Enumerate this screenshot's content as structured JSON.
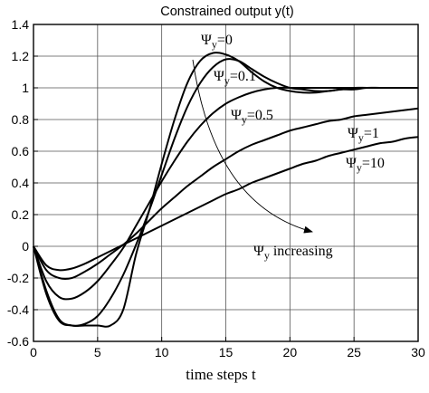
{
  "chart_data": {
    "type": "line",
    "title": "Constrained output y(t)",
    "xlabel": "time steps t",
    "ylabel": "",
    "xlim": [
      0,
      30
    ],
    "ylim": [
      -0.6,
      1.4
    ],
    "grid": true,
    "xticks": [
      0,
      5,
      10,
      15,
      20,
      25,
      30
    ],
    "yticks": [
      -0.6,
      -0.4,
      -0.2,
      0,
      0.2,
      0.4,
      0.6,
      0.8,
      1,
      1.2,
      1.4
    ],
    "ytick_labels": [
      "-0.6",
      "-0.4",
      "-0.2",
      "0",
      "0.2",
      "0.4",
      "0.6",
      "0.8",
      "1",
      "1.2",
      "1.4"
    ],
    "series": [
      {
        "label_main": "Ψ",
        "label_sub": "y",
        "label_rest": "=0",
        "x": [
          0,
          1,
          2,
          3,
          4,
          5,
          6,
          7,
          8,
          9,
          10,
          11,
          12,
          13,
          14,
          15,
          16,
          17,
          18,
          19,
          20,
          21,
          22,
          23,
          24,
          25,
          26,
          27,
          28,
          29,
          30
        ],
        "y": [
          0,
          -0.3,
          -0.47,
          -0.5,
          -0.5,
          -0.5,
          -0.5,
          -0.4,
          -0.05,
          0.22,
          0.52,
          0.8,
          1.03,
          1.17,
          1.22,
          1.21,
          1.17,
          1.1,
          1.04,
          1.0,
          0.98,
          0.97,
          0.97,
          0.98,
          0.99,
          1.0,
          1.0,
          1.0,
          1.0,
          1.0,
          1.0
        ]
      },
      {
        "label_main": "Ψ",
        "label_sub": "y",
        "label_rest": "=0.1",
        "x": [
          0,
          1,
          2,
          3,
          4,
          5,
          6,
          7,
          8,
          9,
          10,
          11,
          12,
          13,
          14,
          15,
          16,
          17,
          18,
          19,
          20,
          21,
          22,
          23,
          24,
          25,
          26,
          27,
          28,
          29,
          30
        ],
        "y": [
          0,
          -0.28,
          -0.46,
          -0.5,
          -0.49,
          -0.44,
          -0.33,
          -0.18,
          0.01,
          0.22,
          0.45,
          0.68,
          0.88,
          1.03,
          1.13,
          1.18,
          1.17,
          1.12,
          1.07,
          1.03,
          1.0,
          0.99,
          0.98,
          0.98,
          0.99,
          0.99,
          1.0,
          1.0,
          1.0,
          1.0,
          1.0
        ]
      },
      {
        "label_main": "Ψ",
        "label_sub": "y",
        "label_rest": "=0.5",
        "x": [
          0,
          1,
          2,
          3,
          4,
          5,
          6,
          7,
          8,
          9,
          10,
          11,
          12,
          13,
          14,
          15,
          16,
          17,
          18,
          19,
          20,
          21,
          22,
          23,
          24,
          25,
          26,
          27,
          28,
          29,
          30
        ],
        "y": [
          0,
          -0.22,
          -0.32,
          -0.33,
          -0.29,
          -0.22,
          -0.12,
          -0.01,
          0.13,
          0.27,
          0.41,
          0.54,
          0.66,
          0.76,
          0.84,
          0.9,
          0.94,
          0.97,
          0.99,
          1.0,
          1.0,
          1.0,
          1.0,
          1.0,
          1.0,
          1.0,
          1.0,
          1.0,
          1.0,
          1.0,
          1.0
        ]
      },
      {
        "label_main": "Ψ",
        "label_sub": "y",
        "label_rest": "=1",
        "x": [
          0,
          1,
          2,
          3,
          4,
          5,
          6,
          7,
          8,
          9,
          10,
          11,
          12,
          13,
          14,
          15,
          16,
          17,
          18,
          19,
          20,
          21,
          22,
          23,
          24,
          25,
          26,
          27,
          28,
          29,
          30
        ],
        "y": [
          0,
          -0.15,
          -0.2,
          -0.2,
          -0.16,
          -0.11,
          -0.05,
          0.01,
          0.08,
          0.16,
          0.24,
          0.31,
          0.38,
          0.44,
          0.5,
          0.55,
          0.6,
          0.64,
          0.67,
          0.7,
          0.73,
          0.75,
          0.77,
          0.79,
          0.8,
          0.82,
          0.83,
          0.84,
          0.85,
          0.86,
          0.87
        ]
      },
      {
        "label_main": "Ψ",
        "label_sub": "y",
        "label_rest": "=10",
        "x": [
          0,
          1,
          2,
          3,
          4,
          5,
          6,
          7,
          8,
          9,
          10,
          11,
          12,
          13,
          14,
          15,
          16,
          17,
          18,
          19,
          20,
          21,
          22,
          23,
          24,
          25,
          26,
          27,
          28,
          29,
          30
        ],
        "y": [
          0,
          -0.12,
          -0.15,
          -0.14,
          -0.11,
          -0.07,
          -0.03,
          0.01,
          0.05,
          0.09,
          0.13,
          0.17,
          0.21,
          0.25,
          0.29,
          0.33,
          0.36,
          0.4,
          0.43,
          0.46,
          0.49,
          0.52,
          0.54,
          0.57,
          0.59,
          0.61,
          0.63,
          0.65,
          0.66,
          0.68,
          0.69
        ]
      }
    ],
    "annotation": {
      "main": "Ψ",
      "sub": "y",
      "rest": " increasing"
    }
  }
}
